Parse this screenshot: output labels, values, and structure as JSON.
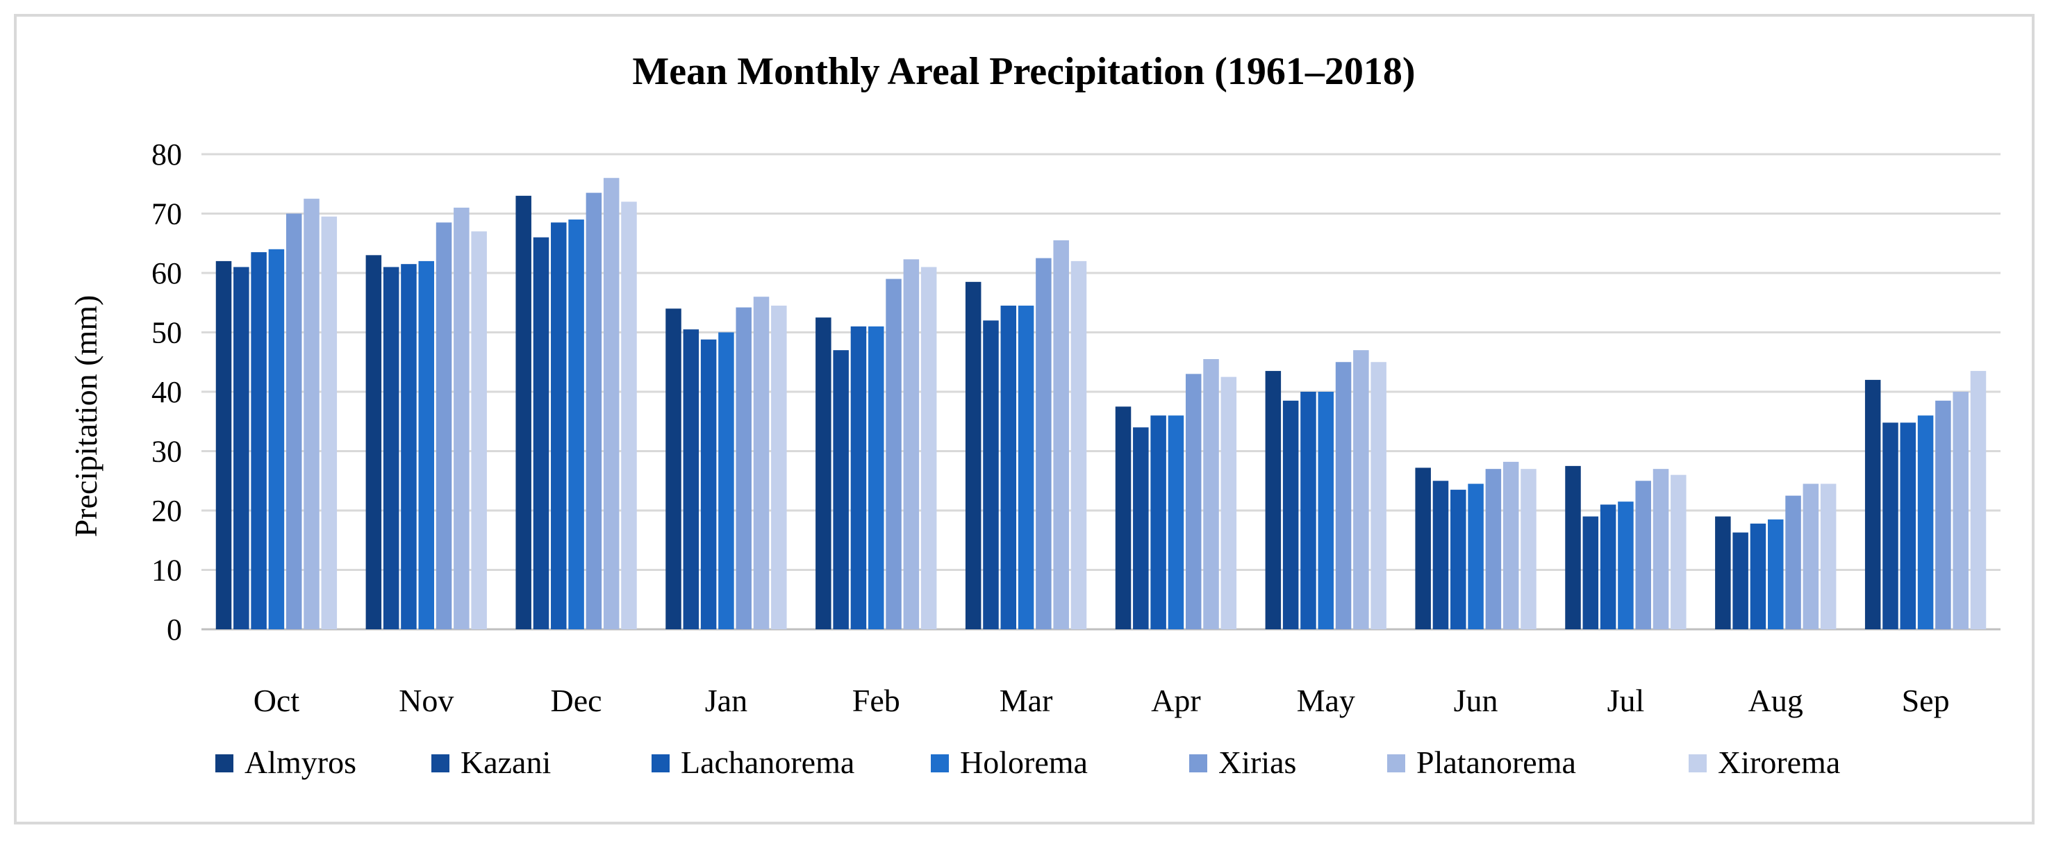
{
  "chart_data": {
    "type": "bar",
    "title": "Mean Monthly Areal Precipitation  (1961–2018)",
    "xlabel": "",
    "ylabel": "Precipitation (mm)",
    "ylim": [
      0,
      80
    ],
    "yticks": [
      0,
      10,
      20,
      30,
      40,
      50,
      60,
      70,
      80
    ],
    "grid": true,
    "legend": "bottom",
    "categories": [
      "Oct",
      "Nov",
      "Dec",
      "Jan",
      "Feb",
      "Mar",
      "Apr",
      "May",
      "Jun",
      "Jul",
      "Aug",
      "Sep"
    ],
    "series": [
      {
        "name": "Almyros",
        "color": "#0f3e80",
        "values": [
          62,
          63,
          73,
          54,
          52.5,
          58.5,
          37.5,
          43.5,
          27.2,
          27.5,
          19,
          42
        ]
      },
      {
        "name": "Kazani",
        "color": "#134b99",
        "values": [
          61,
          61,
          66,
          50.5,
          47,
          52,
          34,
          38.5,
          25,
          19,
          16.3,
          34.8
        ]
      },
      {
        "name": "Lachanorema",
        "color": "#155ab3",
        "values": [
          63.5,
          61.5,
          68.5,
          48.8,
          51,
          54.5,
          36,
          40,
          23.5,
          21,
          17.8,
          34.8
        ]
      },
      {
        "name": "Holorema",
        "color": "#1f6fcc",
        "values": [
          64,
          62,
          69,
          50,
          51,
          54.5,
          36,
          40,
          24.5,
          21.5,
          18.5,
          36
        ]
      },
      {
        "name": "Xirias",
        "color": "#7a9bd6",
        "values": [
          70,
          68.5,
          73.5,
          54.2,
          59,
          62.5,
          43,
          45,
          27,
          25,
          22.5,
          38.5
        ]
      },
      {
        "name": "Platanorema",
        "color": "#a3b8e2",
        "values": [
          72.5,
          71,
          76,
          56,
          62.3,
          65.5,
          45.5,
          47,
          28.2,
          27,
          24.5,
          40
        ]
      },
      {
        "name": "Xirorema",
        "color": "#c3d0ec",
        "values": [
          69.5,
          67,
          72,
          54.5,
          61,
          62,
          42.5,
          45,
          27,
          26,
          24.5,
          43.5
        ]
      }
    ]
  }
}
